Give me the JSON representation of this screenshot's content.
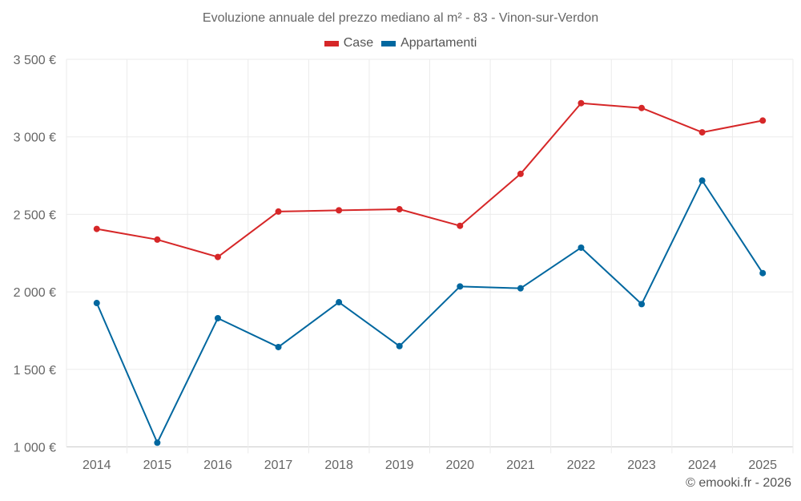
{
  "chart_data": {
    "type": "line",
    "title": "Evoluzione annuale del prezzo mediano al m² - 83 - Vinon-sur-Verdon",
    "xlabel": "",
    "ylabel": "",
    "categories": [
      "2014",
      "2015",
      "2016",
      "2017",
      "2018",
      "2019",
      "2020",
      "2021",
      "2022",
      "2023",
      "2024",
      "2025"
    ],
    "series": [
      {
        "name": "Case",
        "color": "#d62728",
        "values": [
          2406,
          2337,
          2225,
          2518,
          2526,
          2533,
          2426,
          2761,
          3217,
          3186,
          3029,
          3105
        ]
      },
      {
        "name": "Appartamenti",
        "color": "#00679f",
        "values": [
          1928,
          1027,
          1830,
          1644,
          1933,
          1650,
          2035,
          2023,
          2285,
          1921,
          2718,
          2121
        ]
      }
    ],
    "ylim": [
      1000,
      3500
    ],
    "yticks": [
      1000,
      1500,
      2000,
      2500,
      3000,
      3500
    ],
    "ytick_labels": [
      "1 000 €",
      "1 500 €",
      "2 000 €",
      "2 500 €",
      "3 000 €",
      "3 500 €"
    ],
    "grid": true,
    "legend_position": "top-center"
  },
  "footer": {
    "copyright": "© emooki.fr - 2026"
  }
}
